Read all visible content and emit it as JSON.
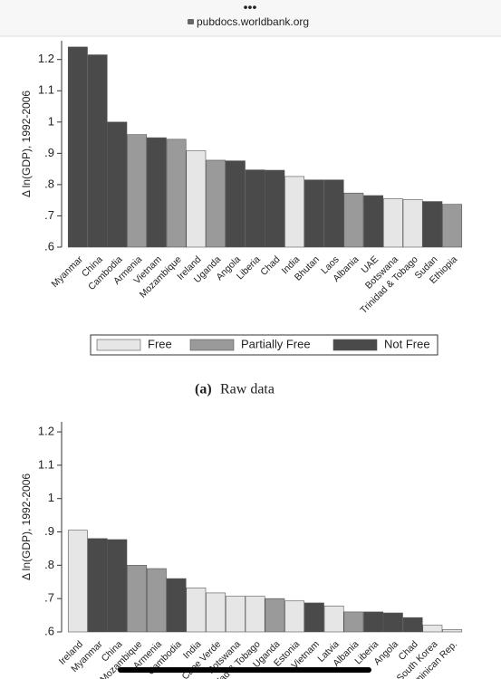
{
  "browser": {
    "url": "pubdocs.worldbank.org"
  },
  "caption": {
    "label": "(a)",
    "text": "Raw data"
  },
  "chart_data": [
    {
      "type": "bar",
      "y_label": "Δ ln(GDP), 1992-2006",
      "categories": [
        "Myanmar",
        "China",
        "Cambodia",
        "Armenia",
        "Vietnam",
        "Mozambique",
        "Ireland",
        "Uganda",
        "Angola",
        "Liberia",
        "Chad",
        "India",
        "Bhutan",
        "Laos",
        "Albania",
        "UAE",
        "Botswana",
        "Trinidad & Tobago",
        "Sudan",
        "Ethiopia"
      ],
      "series": [
        {
          "name": "Free",
          "color": "#e6e6e6",
          "values": [
            null,
            null,
            null,
            null,
            null,
            null,
            0.908,
            null,
            null,
            null,
            null,
            0.826,
            null,
            null,
            null,
            null,
            0.755,
            0.752,
            null,
            null
          ]
        },
        {
          "name": "Partially Free",
          "color": "#9a9a9a",
          "values": [
            null,
            null,
            null,
            0.96,
            null,
            0.945,
            null,
            0.878,
            null,
            null,
            null,
            null,
            null,
            null,
            0.773,
            null,
            null,
            null,
            null,
            0.737
          ]
        },
        {
          "name": "Not Free",
          "color": "#4a4a4a",
          "values": [
            1.24,
            1.215,
            1.0,
            null,
            0.95,
            null,
            null,
            null,
            0.876,
            0.847,
            0.846,
            null,
            0.815,
            0.815,
            null,
            0.765,
            null,
            null,
            0.746,
            null
          ]
        }
      ],
      "ylim": [
        0.6,
        1.26
      ],
      "yticks": [
        {
          "value": 0.6,
          "label": ".6"
        },
        {
          "value": 0.7,
          "label": ".7"
        },
        {
          "value": 0.8,
          "label": ".8"
        },
        {
          "value": 0.9,
          "label": ".9"
        },
        1,
        1.1,
        1.2
      ],
      "legend": "bottom"
    },
    {
      "type": "bar",
      "y_label": "Δ ln(GDP), 1992-2006",
      "categories": [
        "Ireland",
        "Myanmar",
        "China",
        "Mozambique",
        "Armenia",
        "Cambodia",
        "India",
        "Cape Verde",
        "Botswana",
        "Trinidad & Tobago",
        "Uganda",
        "Estonia",
        "Vietnam",
        "Latvia",
        "Albania",
        "Liberia",
        "Angola",
        "Chad",
        "South Korea",
        "Dominican Rep."
      ],
      "series": [
        {
          "color": "#e6e6e6",
          "values": [
            0.905,
            null,
            null,
            null,
            null,
            null,
            0.732,
            0.717,
            0.707,
            0.707,
            null,
            0.693,
            null,
            0.678,
            null,
            null,
            null,
            null,
            0.62,
            0.607
          ]
        },
        {
          "color": "#9a9a9a",
          "values": [
            null,
            null,
            null,
            0.8,
            0.79,
            null,
            null,
            null,
            null,
            null,
            0.7,
            null,
            null,
            null,
            0.66,
            null,
            null,
            null,
            null,
            null
          ]
        },
        {
          "color": "#4a4a4a",
          "values": [
            null,
            0.88,
            0.877,
            null,
            null,
            0.76,
            null,
            null,
            null,
            null,
            null,
            null,
            0.687,
            null,
            null,
            0.66,
            0.657,
            0.643,
            null,
            null
          ]
        }
      ],
      "ylim": [
        0.6,
        1.23
      ],
      "yticks": [
        {
          "value": 0.6,
          "label": ".6"
        },
        {
          "value": 0.7,
          "label": ".7"
        },
        {
          "value": 0.8,
          "label": ".8"
        },
        {
          "value": 0.9,
          "label": ".9"
        },
        1,
        1.1,
        1.2
      ]
    }
  ]
}
